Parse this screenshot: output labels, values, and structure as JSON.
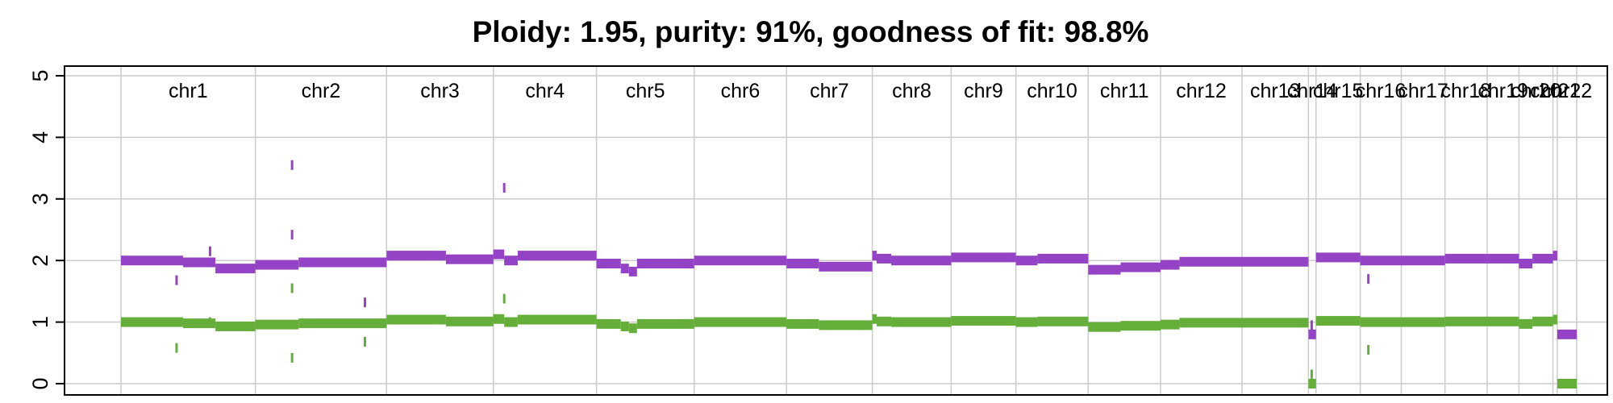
{
  "chart_data": {
    "type": "segment",
    "title": "Ploidy: 1.95, purity: 91%, goodness of fit: 98.8%",
    "xlabel": "",
    "ylabel": "",
    "ylim": [
      0,
      5
    ],
    "y_ticks": [
      "0",
      "1",
      "2",
      "3",
      "4",
      "5"
    ],
    "grid": true,
    "colors": {
      "total": "#9543c6",
      "minor": "#66ae3a",
      "grid": "#cccccc",
      "axis": "#000000"
    },
    "chromosomes": [
      {
        "name": "chr1",
        "length": 249
      },
      {
        "name": "chr2",
        "length": 243
      },
      {
        "name": "chr3",
        "length": 198
      },
      {
        "name": "chr4",
        "length": 191
      },
      {
        "name": "chr5",
        "length": 181
      },
      {
        "name": "chr6",
        "length": 171
      },
      {
        "name": "chr7",
        "length": 159
      },
      {
        "name": "chr8",
        "length": 146
      },
      {
        "name": "chr9",
        "length": 120
      },
      {
        "name": "chr10",
        "length": 134
      },
      {
        "name": "chr11",
        "length": 134
      },
      {
        "name": "chr12",
        "length": 151
      },
      {
        "name": "chr13",
        "length": 123
      },
      {
        "name": "chr14",
        "length": 14
      },
      {
        "name": "chr15",
        "length": 82
      },
      {
        "name": "chr16",
        "length": 76
      },
      {
        "name": "chr17",
        "length": 81
      },
      {
        "name": "chr18",
        "length": 78
      },
      {
        "name": "chr19",
        "length": 59
      },
      {
        "name": "chr20",
        "length": 63
      },
      {
        "name": "chr21",
        "length": 8
      },
      {
        "name": "chr22",
        "length": 36
      }
    ],
    "series": [
      {
        "name": "",
        "role": "total",
        "segments": [
          {
            "chr": "chr1",
            "start": 0,
            "end": 115,
            "value": 2.0
          },
          {
            "chr": "chr1",
            "start": 115,
            "end": 175,
            "value": 1.97
          },
          {
            "chr": "chr1",
            "start": 175,
            "end": 249,
            "value": 1.87
          },
          {
            "chr": "chr2",
            "start": 0,
            "end": 80,
            "value": 1.93
          },
          {
            "chr": "chr2",
            "start": 80,
            "end": 243,
            "value": 1.97
          },
          {
            "chr": "chr3",
            "start": 0,
            "end": 110,
            "value": 2.08
          },
          {
            "chr": "chr3",
            "start": 110,
            "end": 198,
            "value": 2.02
          },
          {
            "chr": "chr4",
            "start": 0,
            "end": 20,
            "value": 2.1
          },
          {
            "chr": "chr4",
            "start": 20,
            "end": 45,
            "value": 2.0
          },
          {
            "chr": "chr4",
            "start": 45,
            "end": 191,
            "value": 2.08
          },
          {
            "chr": "chr5",
            "start": 0,
            "end": 45,
            "value": 1.95
          },
          {
            "chr": "chr5",
            "start": 45,
            "end": 60,
            "value": 1.87
          },
          {
            "chr": "chr5",
            "start": 60,
            "end": 75,
            "value": 1.82
          },
          {
            "chr": "chr5",
            "start": 75,
            "end": 181,
            "value": 1.95
          },
          {
            "chr": "chr6",
            "start": 0,
            "end": 171,
            "value": 2.0
          },
          {
            "chr": "chr7",
            "start": 0,
            "end": 60,
            "value": 1.95
          },
          {
            "chr": "chr7",
            "start": 60,
            "end": 159,
            "value": 1.9
          },
          {
            "chr": "chr8",
            "start": 0,
            "end": 8,
            "value": 2.08
          },
          {
            "chr": "chr8",
            "start": 8,
            "end": 35,
            "value": 2.03
          },
          {
            "chr": "chr8",
            "start": 35,
            "end": 146,
            "value": 2.0
          },
          {
            "chr": "chr9",
            "start": 0,
            "end": 120,
            "value": 2.05
          },
          {
            "chr": "chr10",
            "start": 0,
            "end": 40,
            "value": 2.0
          },
          {
            "chr": "chr10",
            "start": 40,
            "end": 134,
            "value": 2.03
          },
          {
            "chr": "chr11",
            "start": 0,
            "end": 60,
            "value": 1.85
          },
          {
            "chr": "chr11",
            "start": 60,
            "end": 134,
            "value": 1.89
          },
          {
            "chr": "chr12",
            "start": 0,
            "end": 35,
            "value": 1.93
          },
          {
            "chr": "chr12",
            "start": 35,
            "end": 151,
            "value": 1.98
          },
          {
            "chr": "chr13",
            "start": 0,
            "end": 123,
            "value": 1.98
          },
          {
            "chr": "chr14",
            "start": 0,
            "end": 14,
            "value": 0.8
          },
          {
            "chr": "chr15",
            "start": 0,
            "end": 82,
            "value": 2.05
          },
          {
            "chr": "chr16",
            "start": 0,
            "end": 76,
            "value": 2.0
          },
          {
            "chr": "chr17",
            "start": 0,
            "end": 81,
            "value": 2.0
          },
          {
            "chr": "chr18",
            "start": 0,
            "end": 78,
            "value": 2.03
          },
          {
            "chr": "chr19",
            "start": 0,
            "end": 59,
            "value": 2.03
          },
          {
            "chr": "chr20",
            "start": 0,
            "end": 25,
            "value": 1.95
          },
          {
            "chr": "chr20",
            "start": 25,
            "end": 63,
            "value": 2.03
          },
          {
            "chr": "chr21",
            "start": 0,
            "end": 8,
            "value": 2.08
          },
          {
            "chr": "chr22",
            "start": 0,
            "end": 36,
            "value": 0.8
          }
        ]
      },
      {
        "name": "",
        "role": "minor",
        "segments": [
          {
            "chr": "chr1",
            "start": 0,
            "end": 115,
            "value": 1.0
          },
          {
            "chr": "chr1",
            "start": 115,
            "end": 175,
            "value": 0.98
          },
          {
            "chr": "chr1",
            "start": 175,
            "end": 249,
            "value": 0.93
          },
          {
            "chr": "chr2",
            "start": 0,
            "end": 80,
            "value": 0.96
          },
          {
            "chr": "chr2",
            "start": 80,
            "end": 243,
            "value": 0.98
          },
          {
            "chr": "chr3",
            "start": 0,
            "end": 110,
            "value": 1.04
          },
          {
            "chr": "chr3",
            "start": 110,
            "end": 198,
            "value": 1.01
          },
          {
            "chr": "chr4",
            "start": 0,
            "end": 20,
            "value": 1.05
          },
          {
            "chr": "chr4",
            "start": 20,
            "end": 45,
            "value": 1.0
          },
          {
            "chr": "chr4",
            "start": 45,
            "end": 191,
            "value": 1.04
          },
          {
            "chr": "chr5",
            "start": 0,
            "end": 45,
            "value": 0.97
          },
          {
            "chr": "chr5",
            "start": 45,
            "end": 60,
            "value": 0.93
          },
          {
            "chr": "chr5",
            "start": 60,
            "end": 75,
            "value": 0.9
          },
          {
            "chr": "chr5",
            "start": 75,
            "end": 181,
            "value": 0.97
          },
          {
            "chr": "chr6",
            "start": 0,
            "end": 171,
            "value": 1.0
          },
          {
            "chr": "chr7",
            "start": 0,
            "end": 60,
            "value": 0.97
          },
          {
            "chr": "chr7",
            "start": 60,
            "end": 159,
            "value": 0.95
          },
          {
            "chr": "chr8",
            "start": 0,
            "end": 8,
            "value": 1.05
          },
          {
            "chr": "chr8",
            "start": 8,
            "end": 35,
            "value": 1.01
          },
          {
            "chr": "chr8",
            "start": 35,
            "end": 146,
            "value": 1.0
          },
          {
            "chr": "chr9",
            "start": 0,
            "end": 120,
            "value": 1.02
          },
          {
            "chr": "chr10",
            "start": 0,
            "end": 40,
            "value": 1.0
          },
          {
            "chr": "chr10",
            "start": 40,
            "end": 134,
            "value": 1.01
          },
          {
            "chr": "chr11",
            "start": 0,
            "end": 60,
            "value": 0.92
          },
          {
            "chr": "chr11",
            "start": 60,
            "end": 134,
            "value": 0.94
          },
          {
            "chr": "chr12",
            "start": 0,
            "end": 35,
            "value": 0.96
          },
          {
            "chr": "chr12",
            "start": 35,
            "end": 151,
            "value": 0.99
          },
          {
            "chr": "chr13",
            "start": 0,
            "end": 123,
            "value": 0.99
          },
          {
            "chr": "chr14",
            "start": 0,
            "end": 14,
            "value": 0.0
          },
          {
            "chr": "chr15",
            "start": 0,
            "end": 82,
            "value": 1.02
          },
          {
            "chr": "chr16",
            "start": 0,
            "end": 76,
            "value": 1.0
          },
          {
            "chr": "chr17",
            "start": 0,
            "end": 81,
            "value": 1.0
          },
          {
            "chr": "chr18",
            "start": 0,
            "end": 78,
            "value": 1.01
          },
          {
            "chr": "chr19",
            "start": 0,
            "end": 59,
            "value": 1.01
          },
          {
            "chr": "chr20",
            "start": 0,
            "end": 25,
            "value": 0.97
          },
          {
            "chr": "chr20",
            "start": 25,
            "end": 63,
            "value": 1.01
          },
          {
            "chr": "chr21",
            "start": 0,
            "end": 8,
            "value": 1.04
          },
          {
            "chr": "chr22",
            "start": 0,
            "end": 36,
            "value": 0.0
          }
        ]
      }
    ],
    "outliers": [
      {
        "chr": "chr1",
        "pos": 103,
        "total": 1.68,
        "minor": 0.58
      },
      {
        "chr": "chr1",
        "pos": 165,
        "total": 2.15,
        "minor": 1.0
      },
      {
        "chr": "chr2",
        "pos": 68,
        "total": 3.55,
        "minor": 1.55
      },
      {
        "chr": "chr2",
        "pos": 68,
        "total": 2.42,
        "minor": 0.42
      },
      {
        "chr": "chr2",
        "pos": 203,
        "total": 1.32,
        "minor": 0.68
      },
      {
        "chr": "chr4",
        "pos": 20,
        "total": 3.18,
        "minor": 1.38
      },
      {
        "chr": "chr14",
        "pos": 6,
        "total": 0.95,
        "minor": 0.15
      },
      {
        "chr": "chr16",
        "pos": 15,
        "total": 1.7,
        "minor": 0.55
      }
    ]
  }
}
